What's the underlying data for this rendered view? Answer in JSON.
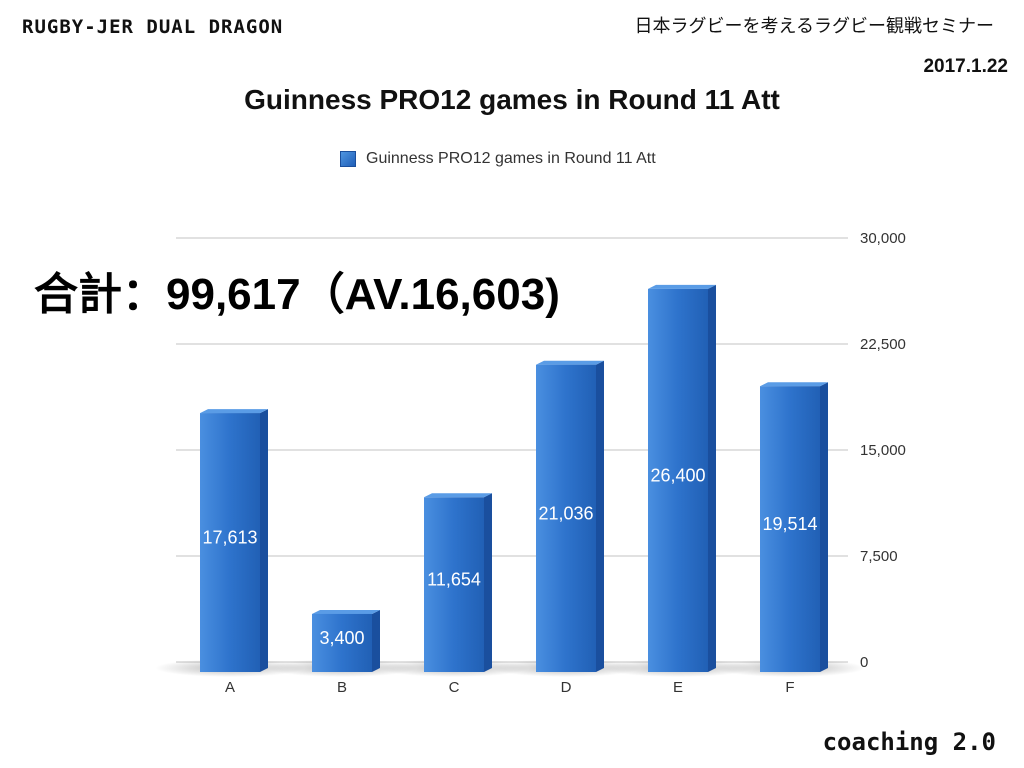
{
  "header": {
    "brand": "RUGBY-JER DUAL DRAGON",
    "seminar": "日本ラグビーを考えるラグビー観戦セミナー",
    "date": "2017.1.22"
  },
  "summary": {
    "total_text": "合計：99,617（AV.16,603)"
  },
  "footer": {
    "text": "coaching 2.0"
  },
  "colors": {
    "bar": "#2e73cc",
    "bar_dark": "#1a4f9e",
    "grid": "#cfcfcf"
  },
  "chart_data": {
    "type": "bar",
    "title": "Guinness PRO12 games in Round 11 Att",
    "legend": [
      "Guinness PRO12 games in Round 11 Att"
    ],
    "legend_position": "top",
    "categories": [
      "A",
      "B",
      "C",
      "D",
      "E",
      "F"
    ],
    "series": [
      {
        "name": "Guinness PRO12 games in Round 11 Att",
        "values": [
          17613,
          3400,
          11654,
          21036,
          26400,
          19514
        ]
      }
    ],
    "data_labels": [
      "17,613",
      "3,400",
      "11,654",
      "21,036",
      "26,400",
      "19,514"
    ],
    "y_ticks": [
      0,
      7500,
      15000,
      22500,
      30000
    ],
    "y_tick_labels": [
      "0",
      "7,500",
      "15,000",
      "22,500",
      "30,000"
    ],
    "ylim": [
      0,
      30000
    ],
    "y_axis_side": "right",
    "grid": true
  }
}
